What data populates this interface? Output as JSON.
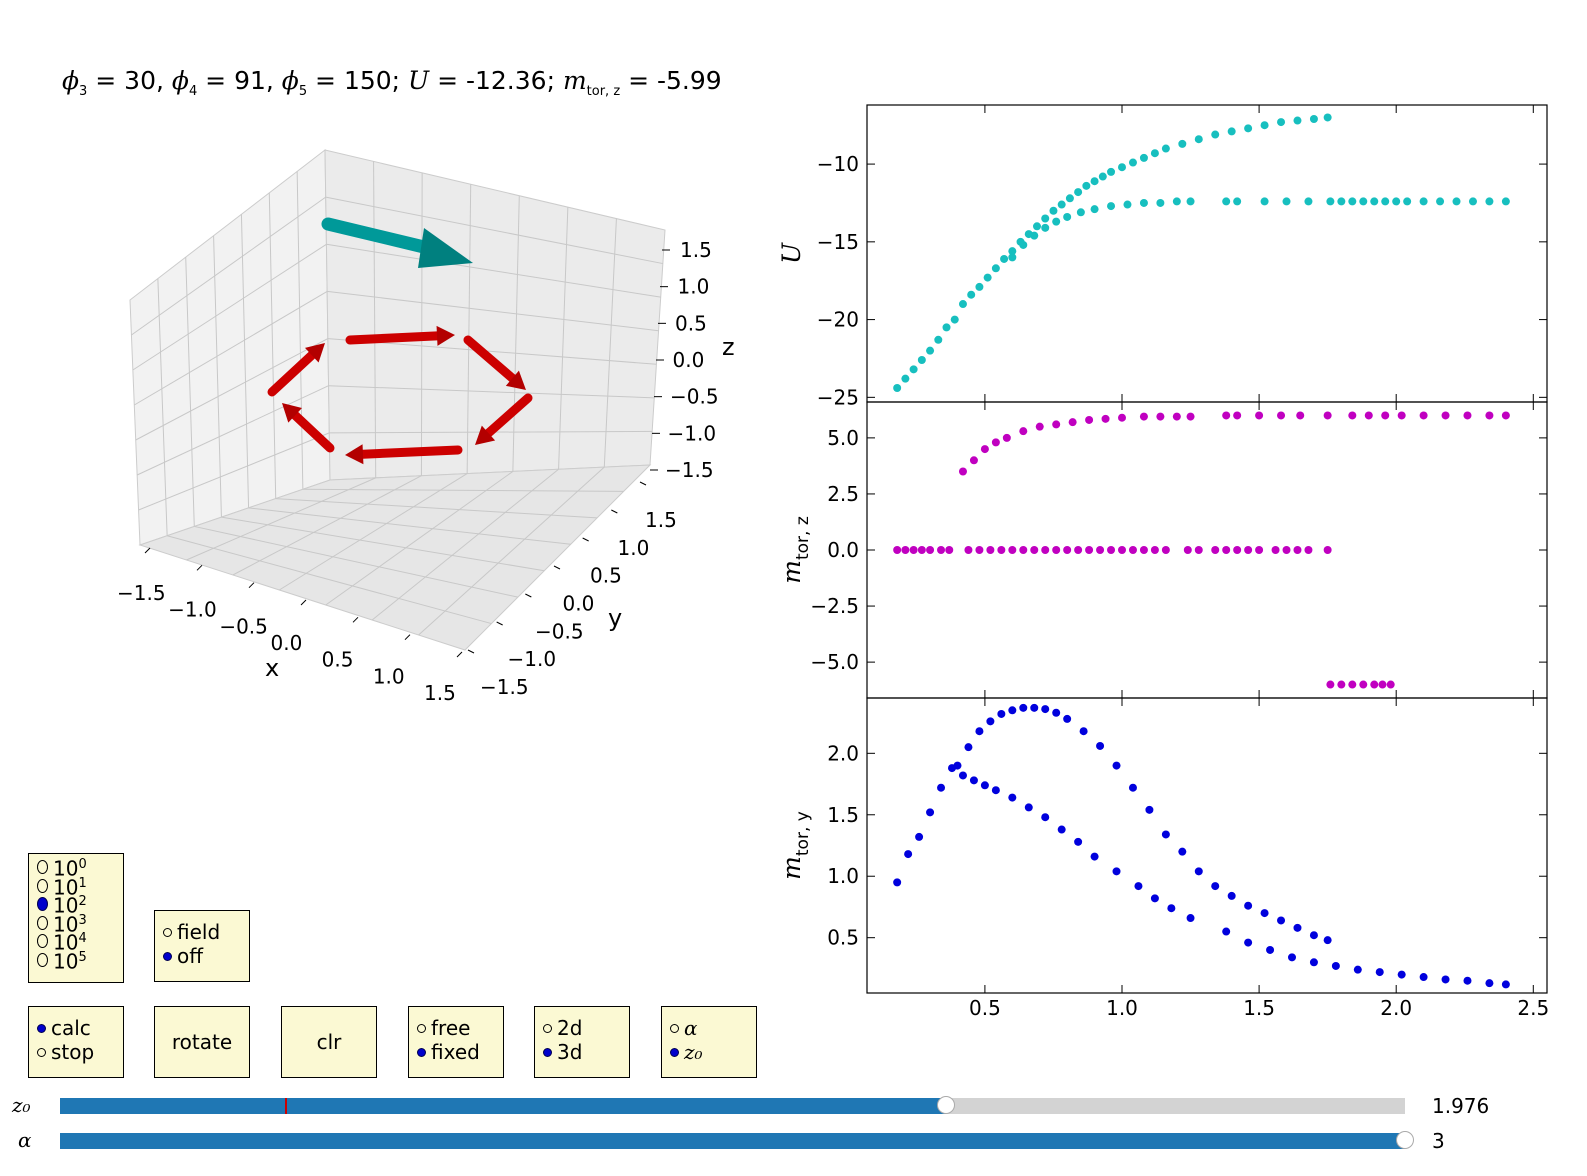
{
  "title3d": {
    "phi3": "30",
    "phi4": "91",
    "phi5": "150",
    "U": "-12.36",
    "mtor_z": "-5.99"
  },
  "axes3d": {
    "x_label": "x",
    "y_label": "y",
    "z_label": "z",
    "x_ticks": [
      "−1.5",
      "−1.0",
      "−0.5",
      "0.0",
      "0.5",
      "1.0",
      "1.5"
    ],
    "y_ticks": [
      "−1.5",
      "−1.0",
      "−0.5",
      "0.0",
      "0.5",
      "1.0",
      "1.5"
    ],
    "z_ticks": [
      "1.5",
      "1.0",
      "0.5",
      "0.0",
      "−0.5",
      "−1.0",
      "−1.5"
    ],
    "arrow_colors": {
      "moments": "#cc0000",
      "field": "#009999"
    }
  },
  "chart_data": [
    {
      "type": "scatter",
      "ylabel": "U",
      "ylim": [
        -25.3,
        -6.2
      ],
      "yticks": [
        "−10",
        "−15",
        "−20",
        "−25"
      ],
      "xlim": [
        0.07,
        2.55
      ],
      "color": "#17bfbf",
      "series": [
        {
          "points": [
            [
              0.18,
              -24.4
            ],
            [
              0.21,
              -23.8
            ],
            [
              0.24,
              -23.2
            ],
            [
              0.27,
              -22.6
            ],
            [
              0.3,
              -22.0
            ],
            [
              0.33,
              -21.3
            ],
            [
              0.36,
              -20.5
            ],
            [
              0.39,
              -20.0
            ],
            [
              0.42,
              -19.0
            ],
            [
              0.45,
              -18.4
            ],
            [
              0.48,
              -17.9
            ],
            [
              0.51,
              -17.3
            ],
            [
              0.54,
              -16.7
            ],
            [
              0.57,
              -16.1
            ],
            [
              0.6,
              -15.6
            ],
            [
              0.63,
              -15.0
            ],
            [
              0.66,
              -14.5
            ],
            [
              0.69,
              -14.0
            ],
            [
              0.72,
              -13.5
            ],
            [
              0.75,
              -13.0
            ],
            [
              0.78,
              -12.6
            ],
            [
              0.81,
              -12.2
            ],
            [
              0.84,
              -11.8
            ],
            [
              0.87,
              -11.4
            ],
            [
              0.9,
              -11.1
            ],
            [
              0.93,
              -10.8
            ],
            [
              0.96,
              -10.5
            ],
            [
              1.0,
              -10.2
            ],
            [
              1.04,
              -9.9
            ],
            [
              1.08,
              -9.6
            ],
            [
              1.12,
              -9.3
            ],
            [
              1.16,
              -9.0
            ],
            [
              1.22,
              -8.7
            ],
            [
              1.28,
              -8.4
            ],
            [
              1.34,
              -8.1
            ],
            [
              1.4,
              -7.9
            ],
            [
              1.46,
              -7.7
            ],
            [
              1.52,
              -7.5
            ],
            [
              1.58,
              -7.3
            ],
            [
              1.64,
              -7.2
            ],
            [
              1.7,
              -7.1
            ],
            [
              1.75,
              -7.0
            ]
          ]
        },
        {
          "points": [
            [
              0.6,
              -16.0
            ],
            [
              0.64,
              -15.2
            ],
            [
              0.68,
              -14.6
            ],
            [
              0.72,
              -14.1
            ],
            [
              0.76,
              -13.7
            ],
            [
              0.8,
              -13.4
            ],
            [
              0.85,
              -13.1
            ],
            [
              0.9,
              -12.9
            ],
            [
              0.96,
              -12.7
            ],
            [
              1.02,
              -12.6
            ],
            [
              1.08,
              -12.5
            ],
            [
              1.14,
              -12.5
            ],
            [
              1.2,
              -12.4
            ],
            [
              1.25,
              -12.4
            ],
            [
              1.38,
              -12.4
            ],
            [
              1.42,
              -12.4
            ],
            [
              1.52,
              -12.4
            ],
            [
              1.6,
              -12.4
            ],
            [
              1.68,
              -12.4
            ],
            [
              1.76,
              -12.4
            ],
            [
              1.8,
              -12.4
            ],
            [
              1.84,
              -12.4
            ],
            [
              1.88,
              -12.4
            ],
            [
              1.92,
              -12.4
            ],
            [
              1.96,
              -12.4
            ],
            [
              2.0,
              -12.4
            ],
            [
              2.04,
              -12.4
            ],
            [
              2.1,
              -12.4
            ],
            [
              2.16,
              -12.4
            ],
            [
              2.22,
              -12.4
            ],
            [
              2.28,
              -12.4
            ],
            [
              2.34,
              -12.4
            ],
            [
              2.4,
              -12.4
            ]
          ]
        }
      ]
    },
    {
      "type": "scatter",
      "ylabel": "m_tor,z",
      "ylim": [
        -6.6,
        6.6
      ],
      "yticks": [
        "5.0",
        "2.5",
        "0.0",
        "−2.5",
        "−5.0"
      ],
      "xlim": [
        0.07,
        2.55
      ],
      "color": "#c000c0",
      "series": [
        {
          "points": [
            [
              0.42,
              3.5
            ],
            [
              0.46,
              4.0
            ],
            [
              0.5,
              4.5
            ],
            [
              0.54,
              4.8
            ],
            [
              0.58,
              5.0
            ],
            [
              0.64,
              5.3
            ],
            [
              0.7,
              5.5
            ],
            [
              0.76,
              5.6
            ],
            [
              0.82,
              5.7
            ],
            [
              0.88,
              5.8
            ],
            [
              0.94,
              5.85
            ],
            [
              1.0,
              5.9
            ],
            [
              1.08,
              5.95
            ],
            [
              1.14,
              5.95
            ],
            [
              1.2,
              5.95
            ],
            [
              1.25,
              5.95
            ],
            [
              1.38,
              6.0
            ],
            [
              1.42,
              6.0
            ],
            [
              1.5,
              6.0
            ],
            [
              1.58,
              6.0
            ],
            [
              1.65,
              6.0
            ],
            [
              1.75,
              6.0
            ],
            [
              1.84,
              6.0
            ],
            [
              1.9,
              6.0
            ],
            [
              1.96,
              6.0
            ],
            [
              2.02,
              6.0
            ],
            [
              2.1,
              6.0
            ],
            [
              2.18,
              6.0
            ],
            [
              2.26,
              6.0
            ],
            [
              2.34,
              6.0
            ],
            [
              2.4,
              6.0
            ]
          ]
        },
        {
          "points": [
            [
              0.18,
              0
            ],
            [
              0.21,
              0
            ],
            [
              0.24,
              0
            ],
            [
              0.27,
              0
            ],
            [
              0.3,
              0
            ],
            [
              0.34,
              0
            ],
            [
              0.37,
              0
            ],
            [
              0.44,
              0
            ],
            [
              0.48,
              0
            ],
            [
              0.52,
              0
            ],
            [
              0.56,
              0
            ],
            [
              0.6,
              0
            ],
            [
              0.64,
              0
            ],
            [
              0.68,
              0
            ],
            [
              0.72,
              0
            ],
            [
              0.76,
              0
            ],
            [
              0.8,
              0
            ],
            [
              0.84,
              0
            ],
            [
              0.88,
              0
            ],
            [
              0.92,
              0
            ],
            [
              0.96,
              0
            ],
            [
              1.0,
              0
            ],
            [
              1.04,
              0
            ],
            [
              1.08,
              0
            ],
            [
              1.12,
              0
            ],
            [
              1.16,
              0
            ],
            [
              1.24,
              0
            ],
            [
              1.28,
              0
            ],
            [
              1.34,
              0
            ],
            [
              1.38,
              0
            ],
            [
              1.42,
              0
            ],
            [
              1.46,
              0
            ],
            [
              1.5,
              0
            ],
            [
              1.56,
              0
            ],
            [
              1.6,
              0
            ],
            [
              1.64,
              0
            ],
            [
              1.68,
              0
            ],
            [
              1.75,
              0
            ]
          ]
        },
        {
          "points": [
            [
              1.76,
              -6.0
            ],
            [
              1.8,
              -6.0
            ],
            [
              1.84,
              -6.0
            ],
            [
              1.88,
              -6.0
            ],
            [
              1.92,
              -6.0
            ],
            [
              1.95,
              -6.0
            ],
            [
              1.98,
              -6.0
            ]
          ]
        }
      ]
    },
    {
      "type": "scatter",
      "ylabel": "m_tor,y",
      "ylim": [
        0.05,
        2.45
      ],
      "yticks": [
        "2.0",
        "1.5",
        "1.0",
        "0.5"
      ],
      "xlim": [
        0.07,
        2.55
      ],
      "xticks": [
        "0.5",
        "1.0",
        "1.5",
        "2.0",
        "2.5"
      ],
      "color": "#0000dd",
      "series": [
        {
          "points": [
            [
              0.18,
              0.95
            ],
            [
              0.22,
              1.18
            ],
            [
              0.26,
              1.32
            ],
            [
              0.3,
              1.52
            ],
            [
              0.34,
              1.72
            ],
            [
              0.38,
              1.88
            ],
            [
              0.42,
              1.82
            ],
            [
              0.46,
              1.78
            ],
            [
              0.5,
              1.74
            ],
            [
              0.54,
              1.7
            ],
            [
              0.6,
              1.64
            ],
            [
              0.66,
              1.56
            ],
            [
              0.72,
              1.48
            ],
            [
              0.78,
              1.38
            ],
            [
              0.84,
              1.28
            ],
            [
              0.9,
              1.16
            ],
            [
              0.98,
              1.04
            ],
            [
              1.06,
              0.92
            ],
            [
              1.12,
              0.82
            ],
            [
              1.18,
              0.74
            ],
            [
              1.25,
              0.66
            ],
            [
              1.38,
              0.55
            ],
            [
              1.46,
              0.46
            ],
            [
              1.54,
              0.4
            ],
            [
              1.62,
              0.34
            ],
            [
              1.7,
              0.3
            ],
            [
              1.78,
              0.27
            ],
            [
              1.86,
              0.24
            ],
            [
              1.94,
              0.22
            ],
            [
              2.02,
              0.2
            ],
            [
              2.1,
              0.18
            ],
            [
              2.18,
              0.16
            ],
            [
              2.26,
              0.15
            ],
            [
              2.34,
              0.13
            ],
            [
              2.4,
              0.12
            ]
          ]
        },
        {
          "points": [
            [
              0.4,
              1.9
            ],
            [
              0.44,
              2.05
            ],
            [
              0.48,
              2.18
            ],
            [
              0.52,
              2.26
            ],
            [
              0.56,
              2.32
            ],
            [
              0.6,
              2.35
            ],
            [
              0.64,
              2.37
            ],
            [
              0.68,
              2.37
            ],
            [
              0.72,
              2.36
            ],
            [
              0.76,
              2.33
            ],
            [
              0.8,
              2.28
            ],
            [
              0.86,
              2.18
            ],
            [
              0.92,
              2.06
            ],
            [
              0.98,
              1.9
            ],
            [
              1.04,
              1.72
            ],
            [
              1.1,
              1.54
            ],
            [
              1.16,
              1.34
            ],
            [
              1.22,
              1.2
            ],
            [
              1.28,
              1.04
            ],
            [
              1.34,
              0.92
            ],
            [
              1.4,
              0.84
            ],
            [
              1.46,
              0.76
            ],
            [
              1.52,
              0.7
            ],
            [
              1.58,
              0.64
            ],
            [
              1.64,
              0.58
            ],
            [
              1.7,
              0.52
            ],
            [
              1.75,
              0.48
            ]
          ]
        }
      ]
    }
  ],
  "controls": {
    "iter_options": [
      "10^0",
      "10^1",
      "10^2",
      "10^3",
      "10^4",
      "10^5"
    ],
    "iter_selected": 2,
    "field_options": [
      "field",
      "off"
    ],
    "field_selected": 1,
    "calc_options": [
      "calc",
      "stop"
    ],
    "calc_selected": 0,
    "rotate_label": "rotate",
    "clr_label": "clr",
    "free_options": [
      "free",
      "fixed"
    ],
    "free_selected": 1,
    "dim_options": [
      "2d",
      "3d"
    ],
    "dim_selected": 1,
    "param_options": [
      "α",
      "z₀"
    ],
    "param_selected": 1,
    "selected_color": "#0000cc",
    "button_bg": "#fbf9d3"
  },
  "sliders": {
    "z0": {
      "label": "z₀",
      "value_text": "1.976",
      "fraction": 0.659,
      "marker_fraction": 0.167
    },
    "alpha": {
      "label": "α",
      "value_text": "3",
      "fraction": 1.0
    }
  }
}
